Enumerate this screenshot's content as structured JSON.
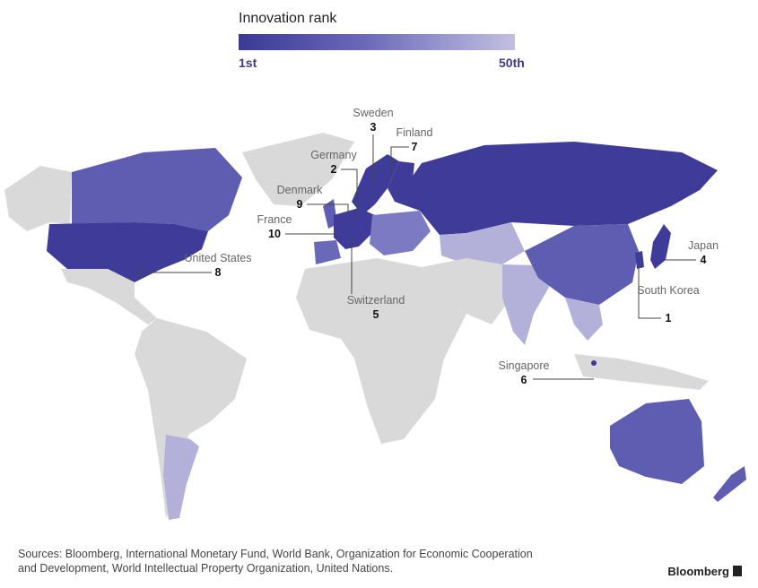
{
  "legend": {
    "title": "Innovation rank",
    "min_label": "1st",
    "max_label": "50th",
    "color_start": "#3a3a96",
    "color_end": "#c2c0e0"
  },
  "colors": {
    "top_rank": "#3e3c98",
    "mid_rank": "#5f5db1",
    "light_rank": "#b3b1da",
    "unranked": "#d9d9d9",
    "borders": "#ffffff"
  },
  "callouts": [
    {
      "name": "Sweden",
      "rank": "3"
    },
    {
      "name": "Finland",
      "rank": "7"
    },
    {
      "name": "Germany",
      "rank": "2"
    },
    {
      "name": "Denmark",
      "rank": "9"
    },
    {
      "name": "France",
      "rank": "10"
    },
    {
      "name": "United States",
      "rank": "8"
    },
    {
      "name": "Switzerland",
      "rank": "5"
    },
    {
      "name": "Japan",
      "rank": "4"
    },
    {
      "name": "South Korea",
      "rank": "1"
    },
    {
      "name": "Singapore",
      "rank": "6"
    }
  ],
  "sources": "Sources: Bloomberg, International Monetary Fund, World Bank, Organization for Economic Cooperation and Development, World Intellectual Property Organization, United Nations.",
  "brand": "Bloomberg"
}
